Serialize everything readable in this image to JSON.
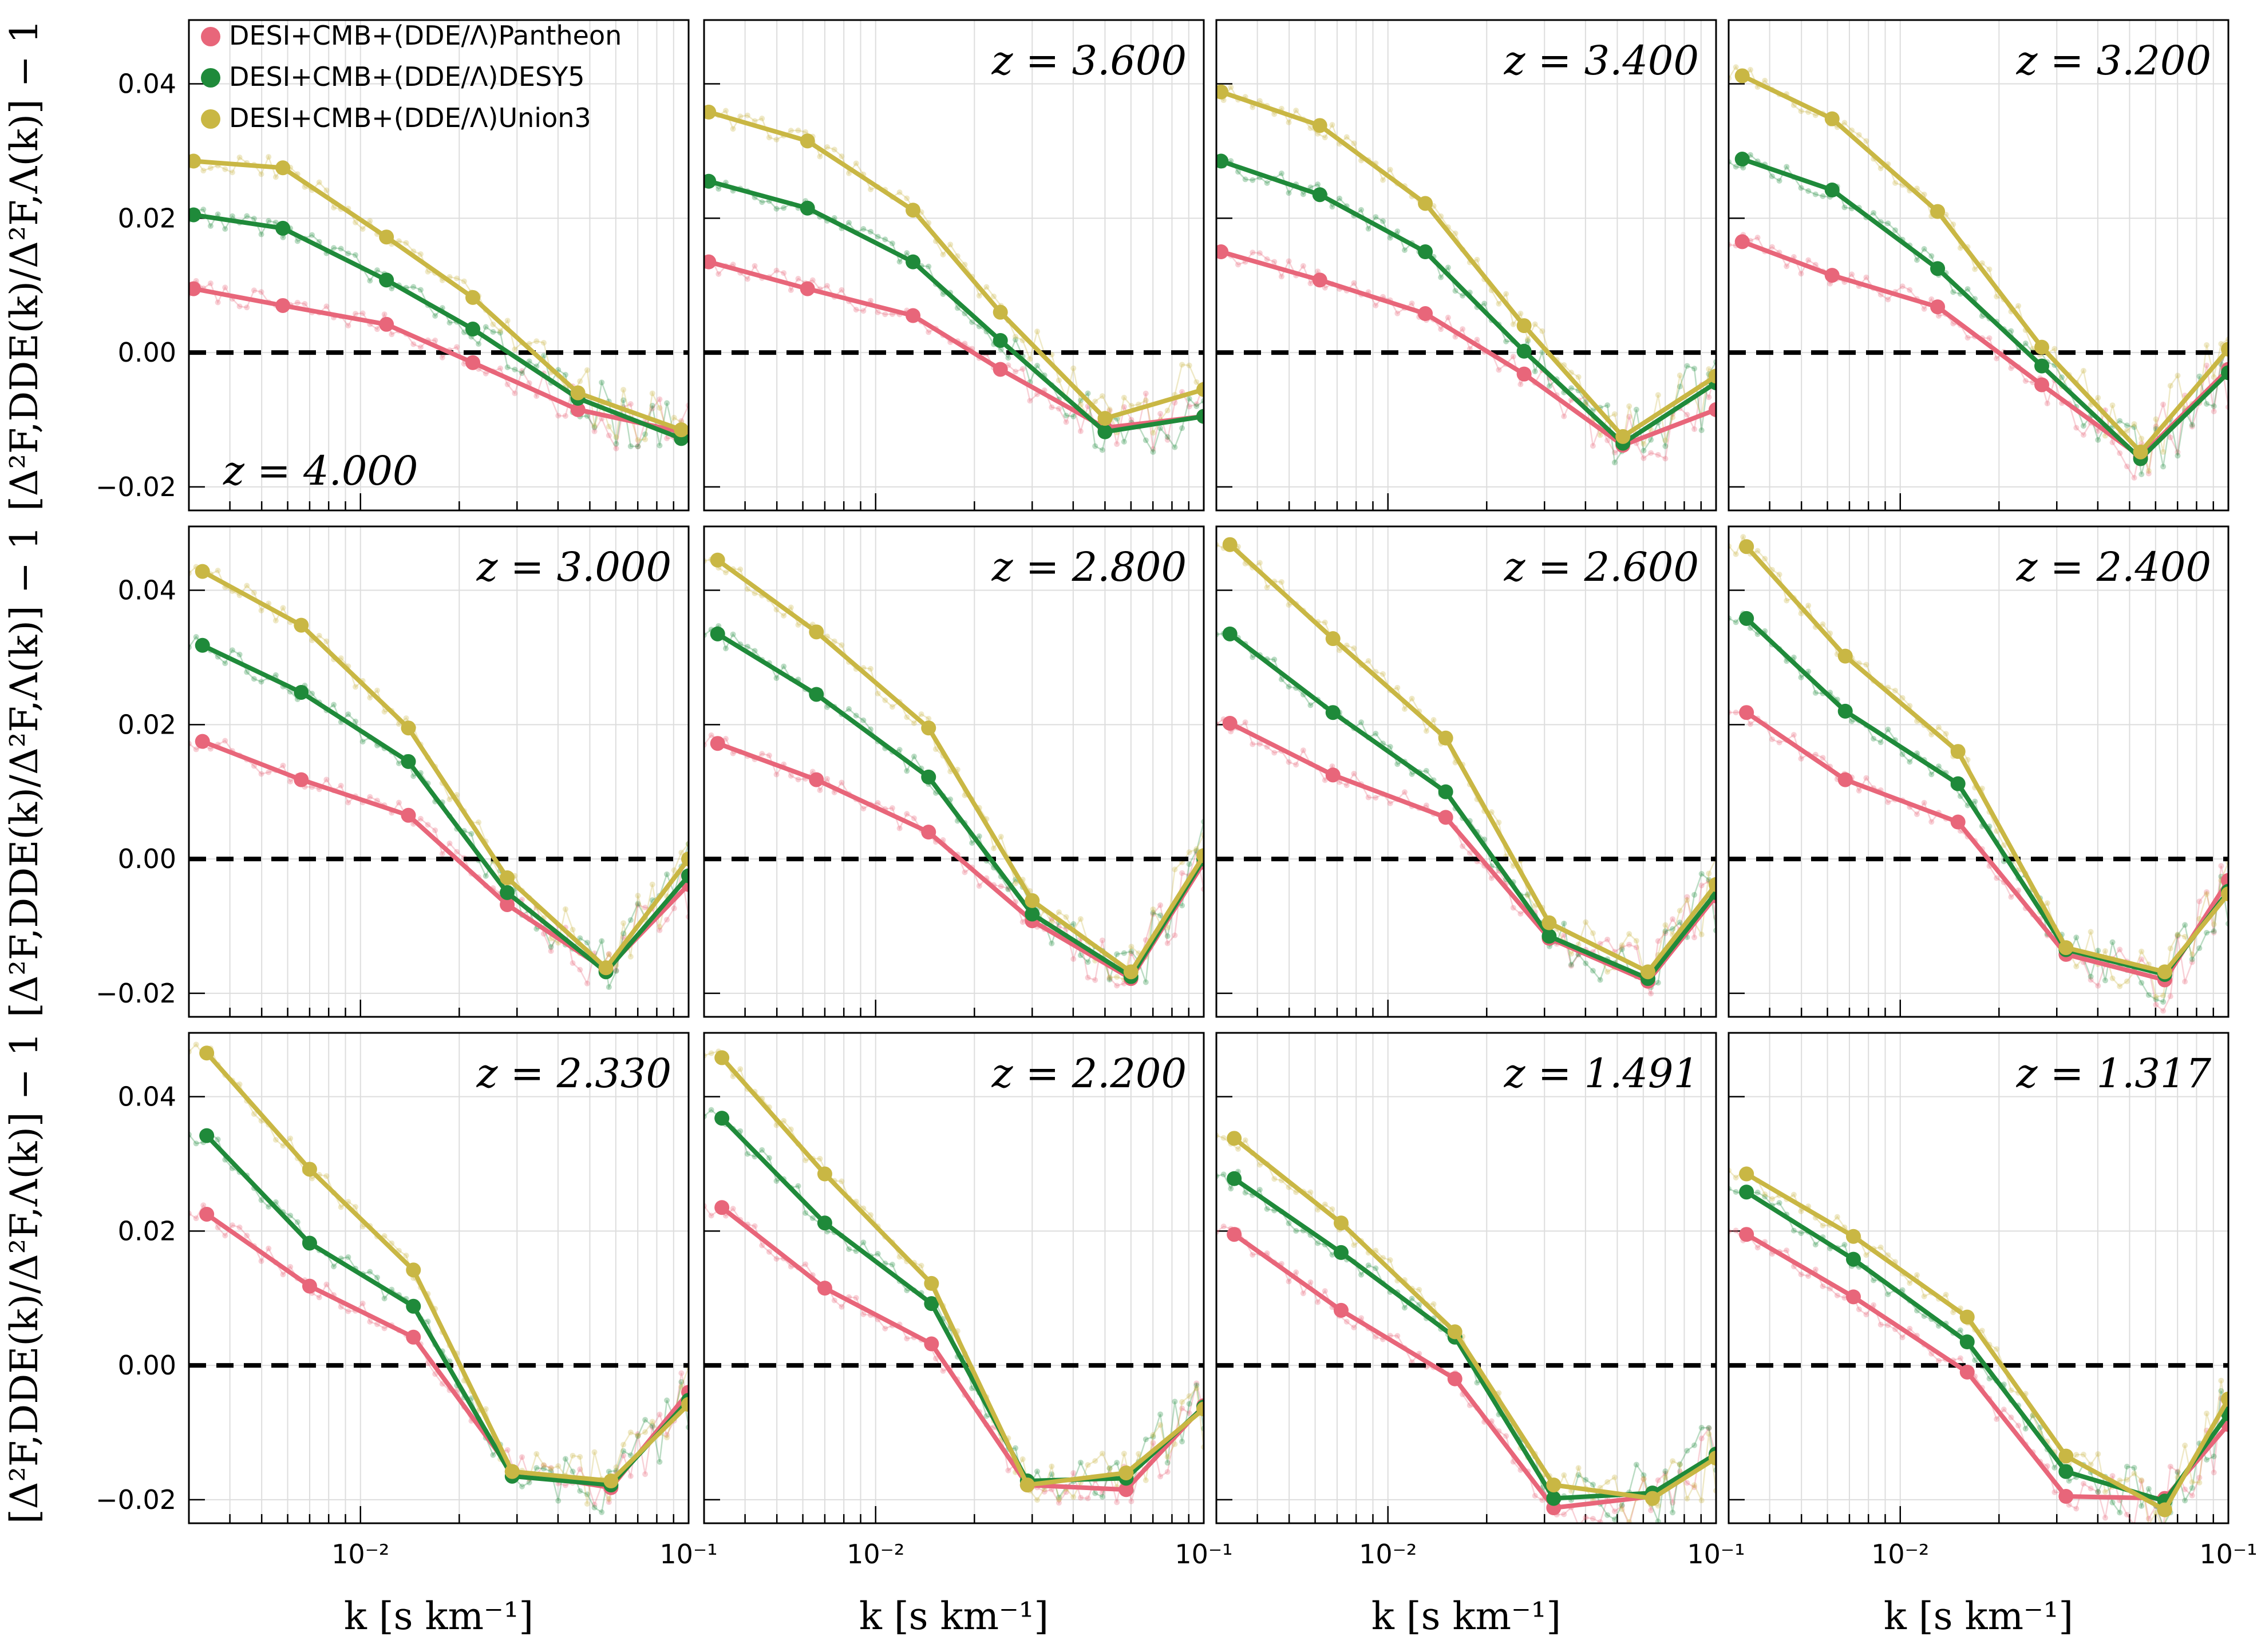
{
  "colors": {
    "pantheon": "#e8667a",
    "desy5": "#1f8a3a",
    "union3": "#c9b744",
    "reference": "#000000",
    "grid": "#dddddd"
  },
  "legend": [
    {
      "key": "pantheon",
      "label": "DESI+CMB+(DDE/Λ)Pantheon"
    },
    {
      "key": "desy5",
      "label": "DESI+CMB+(DDE/Λ)DESY5"
    },
    {
      "key": "union3",
      "label": "DESI+CMB+(DDE/Λ)Union3"
    }
  ],
  "axes": {
    "xlabel": "k [s km⁻¹]",
    "ylabel": "[Δ²F,DDE(k)/Δ²F,Λ(k)] − 1",
    "x_scale": "log",
    "xlim": [
      0.003,
      0.1
    ],
    "ylim": [
      -0.0235,
      0.0495
    ],
    "yticks": [
      -0.02,
      0.0,
      0.02,
      0.04
    ],
    "ytick_labels": [
      "−0.02",
      "0.00",
      "0.02",
      "0.04"
    ],
    "xtick_labels": [
      {
        "value": 0.01,
        "label": "10⁻²"
      },
      {
        "value": 0.1,
        "label": "10⁻¹"
      }
    ],
    "reference_line": 0.0
  },
  "chart_data": [
    {
      "type": "line",
      "z_label": "z = 4.000",
      "z_pos": "bottom-left",
      "series": [
        {
          "name": "DESI+CMB+(DDE/Λ)Pantheon",
          "x": [
            0.0031,
            0.0058,
            0.012,
            0.022,
            0.046,
            0.095
          ],
          "values": [
            0.0095,
            0.007,
            0.0042,
            -0.0015,
            -0.0085,
            -0.0118
          ]
        },
        {
          "name": "DESI+CMB+(DDE/Λ)DESY5",
          "x": [
            0.0031,
            0.0058,
            0.012,
            0.022,
            0.046,
            0.095
          ],
          "values": [
            0.0205,
            0.0185,
            0.0108,
            0.0035,
            -0.0068,
            -0.0128
          ]
        },
        {
          "name": "DESI+CMB+(DDE/Λ)Union3",
          "x": [
            0.0031,
            0.0058,
            0.012,
            0.022,
            0.046,
            0.095
          ],
          "values": [
            0.0285,
            0.0275,
            0.0172,
            0.0082,
            -0.006,
            -0.0115
          ]
        }
      ]
    },
    {
      "type": "line",
      "z_label": "z = 3.600",
      "z_pos": "top-right",
      "series": [
        {
          "name": "DESI+CMB+(DDE/Λ)Pantheon",
          "x": [
            0.0031,
            0.0062,
            0.013,
            0.024,
            0.05,
            0.1
          ],
          "values": [
            0.0135,
            0.0095,
            0.0055,
            -0.0025,
            -0.0112,
            -0.0095
          ]
        },
        {
          "name": "DESI+CMB+(DDE/Λ)DESY5",
          "x": [
            0.0031,
            0.0062,
            0.013,
            0.024,
            0.05,
            0.1
          ],
          "values": [
            0.0255,
            0.0215,
            0.0135,
            0.0018,
            -0.0118,
            -0.0095
          ]
        },
        {
          "name": "DESI+CMB+(DDE/Λ)Union3",
          "x": [
            0.0031,
            0.0062,
            0.013,
            0.024,
            0.05,
            0.1
          ],
          "values": [
            0.0358,
            0.0315,
            0.0212,
            0.006,
            -0.0098,
            -0.0055
          ]
        }
      ]
    },
    {
      "type": "line",
      "z_label": "z = 3.400",
      "z_pos": "top-right",
      "series": [
        {
          "name": "DESI+CMB+(DDE/Λ)Pantheon",
          "x": [
            0.0031,
            0.0062,
            0.013,
            0.026,
            0.052,
            0.1
          ],
          "values": [
            0.015,
            0.0108,
            0.0058,
            -0.0032,
            -0.0138,
            -0.0085
          ]
        },
        {
          "name": "DESI+CMB+(DDE/Λ)DESY5",
          "x": [
            0.0031,
            0.0062,
            0.013,
            0.026,
            0.052,
            0.1
          ],
          "values": [
            0.0285,
            0.0235,
            0.015,
            0.0002,
            -0.0135,
            -0.0045
          ]
        },
        {
          "name": "DESI+CMB+(DDE/Λ)Union3",
          "x": [
            0.0031,
            0.0062,
            0.013,
            0.026,
            0.052,
            0.1
          ],
          "values": [
            0.0388,
            0.0338,
            0.0222,
            0.004,
            -0.0125,
            -0.0035
          ]
        }
      ]
    },
    {
      "type": "line",
      "z_label": "z = 3.200",
      "z_pos": "top-right",
      "series": [
        {
          "name": "DESI+CMB+(DDE/Λ)Pantheon",
          "x": [
            0.0033,
            0.0062,
            0.013,
            0.027,
            0.054,
            0.1
          ],
          "values": [
            0.0165,
            0.0115,
            0.0068,
            -0.0048,
            -0.0155,
            -0.0025
          ]
        },
        {
          "name": "DESI+CMB+(DDE/Λ)DESY5",
          "x": [
            0.0033,
            0.0062,
            0.013,
            0.027,
            0.054,
            0.1
          ],
          "values": [
            0.0288,
            0.0242,
            0.0125,
            -0.002,
            -0.0158,
            -0.003
          ]
        },
        {
          "name": "DESI+CMB+(DDE/Λ)Union3",
          "x": [
            0.0033,
            0.0062,
            0.013,
            0.027,
            0.054,
            0.1
          ],
          "values": [
            0.0412,
            0.0348,
            0.021,
            0.0008,
            -0.0148,
            0.0005
          ]
        }
      ]
    },
    {
      "type": "line",
      "z_label": "z = 3.000",
      "z_pos": "top-right",
      "series": [
        {
          "name": "DESI+CMB+(DDE/Λ)Pantheon",
          "x": [
            0.0033,
            0.0066,
            0.014,
            0.028,
            0.056,
            0.1
          ],
          "values": [
            0.0175,
            0.0118,
            0.0065,
            -0.0068,
            -0.0165,
            -0.0038
          ]
        },
        {
          "name": "DESI+CMB+(DDE/Λ)DESY5",
          "x": [
            0.0033,
            0.0066,
            0.014,
            0.028,
            0.056,
            0.1
          ],
          "values": [
            0.0318,
            0.0248,
            0.0145,
            -0.005,
            -0.0168,
            -0.0025
          ]
        },
        {
          "name": "DESI+CMB+(DDE/Λ)Union3",
          "x": [
            0.0033,
            0.0066,
            0.014,
            0.028,
            0.056,
            0.1
          ],
          "values": [
            0.0428,
            0.0348,
            0.0195,
            -0.0028,
            -0.0162,
            0.0
          ]
        }
      ]
    },
    {
      "type": "line",
      "z_label": "z = 2.800",
      "z_pos": "top-right",
      "series": [
        {
          "name": "DESI+CMB+(DDE/Λ)Pantheon",
          "x": [
            0.0033,
            0.0066,
            0.0145,
            0.03,
            0.06,
            0.1
          ],
          "values": [
            0.0172,
            0.0118,
            0.004,
            -0.0092,
            -0.0178,
            -0.0005
          ]
        },
        {
          "name": "DESI+CMB+(DDE/Λ)DESY5",
          "x": [
            0.0033,
            0.0066,
            0.0145,
            0.03,
            0.06,
            0.1
          ],
          "values": [
            0.0335,
            0.0245,
            0.0122,
            -0.0082,
            -0.0175,
            0.0
          ]
        },
        {
          "name": "DESI+CMB+(DDE/Λ)Union3",
          "x": [
            0.0033,
            0.0066,
            0.0145,
            0.03,
            0.06,
            0.1
          ],
          "values": [
            0.0445,
            0.0338,
            0.0195,
            -0.0062,
            -0.0168,
            0.0005
          ]
        }
      ]
    },
    {
      "type": "line",
      "z_label": "z = 2.600",
      "z_pos": "top-right",
      "series": [
        {
          "name": "DESI+CMB+(DDE/Λ)Pantheon",
          "x": [
            0.0033,
            0.0068,
            0.015,
            0.031,
            0.062,
            0.1
          ],
          "values": [
            0.0202,
            0.0125,
            0.0062,
            -0.0118,
            -0.0182,
            -0.0055
          ]
        },
        {
          "name": "DESI+CMB+(DDE/Λ)DESY5",
          "x": [
            0.0033,
            0.0068,
            0.015,
            0.031,
            0.062,
            0.1
          ],
          "values": [
            0.0335,
            0.0218,
            0.01,
            -0.0115,
            -0.0178,
            -0.005
          ]
        },
        {
          "name": "DESI+CMB+(DDE/Λ)Union3",
          "x": [
            0.0033,
            0.0068,
            0.015,
            0.031,
            0.062,
            0.1
          ],
          "values": [
            0.0468,
            0.0328,
            0.018,
            -0.0095,
            -0.0168,
            -0.0038
          ]
        }
      ]
    },
    {
      "type": "line",
      "z_label": "z = 2.400",
      "z_pos": "top-right",
      "series": [
        {
          "name": "DESI+CMB+(DDE/Λ)Pantheon",
          "x": [
            0.0034,
            0.0068,
            0.015,
            0.032,
            0.064,
            0.1
          ],
          "values": [
            0.0218,
            0.0118,
            0.0055,
            -0.0142,
            -0.018,
            -0.0032
          ]
        },
        {
          "name": "DESI+CMB+(DDE/Λ)DESY5",
          "x": [
            0.0034,
            0.0068,
            0.015,
            0.032,
            0.064,
            0.1
          ],
          "values": [
            0.0358,
            0.022,
            0.0112,
            -0.0135,
            -0.0172,
            -0.0048
          ]
        },
        {
          "name": "DESI+CMB+(DDE/Λ)Union3",
          "x": [
            0.0034,
            0.0068,
            0.015,
            0.032,
            0.064,
            0.1
          ],
          "values": [
            0.0465,
            0.0302,
            0.016,
            -0.0132,
            -0.0168,
            -0.0052
          ]
        }
      ]
    },
    {
      "type": "line",
      "z_label": "z = 2.330",
      "z_pos": "top-right",
      "series": [
        {
          "name": "DESI+CMB+(DDE/Λ)Pantheon",
          "x": [
            0.0034,
            0.007,
            0.0145,
            0.029,
            0.058,
            0.1
          ],
          "values": [
            0.0225,
            0.0118,
            0.0042,
            -0.0158,
            -0.0182,
            -0.004
          ]
        },
        {
          "name": "DESI+CMB+(DDE/Λ)DESY5",
          "x": [
            0.0034,
            0.007,
            0.0145,
            0.029,
            0.058,
            0.1
          ],
          "values": [
            0.0342,
            0.0182,
            0.0088,
            -0.0165,
            -0.0178,
            -0.0052
          ]
        },
        {
          "name": "DESI+CMB+(DDE/Λ)Union3",
          "x": [
            0.0034,
            0.007,
            0.0145,
            0.029,
            0.058,
            0.1
          ],
          "values": [
            0.0465,
            0.0292,
            0.0142,
            -0.0158,
            -0.0172,
            -0.0058
          ]
        }
      ]
    },
    {
      "type": "line",
      "z_label": "z = 2.200",
      "z_pos": "top-right",
      "series": [
        {
          "name": "DESI+CMB+(DDE/Λ)Pantheon",
          "x": [
            0.0034,
            0.007,
            0.0148,
            0.029,
            0.058,
            0.1
          ],
          "values": [
            0.0235,
            0.0115,
            0.0032,
            -0.0178,
            -0.0185,
            -0.006
          ]
        },
        {
          "name": "DESI+CMB+(DDE/Λ)DESY5",
          "x": [
            0.0034,
            0.007,
            0.0148,
            0.029,
            0.058,
            0.1
          ],
          "values": [
            0.0368,
            0.0212,
            0.0092,
            -0.0172,
            -0.0168,
            -0.0062
          ]
        },
        {
          "name": "DESI+CMB+(DDE/Λ)Union3",
          "x": [
            0.0034,
            0.007,
            0.0148,
            0.029,
            0.058,
            0.1
          ],
          "values": [
            0.0458,
            0.0285,
            0.0122,
            -0.0178,
            -0.016,
            -0.0065
          ]
        }
      ]
    },
    {
      "type": "line",
      "z_label": "z = 1.491",
      "z_pos": "top-right",
      "series": [
        {
          "name": "DESI+CMB+(DDE/Λ)Pantheon",
          "x": [
            0.0034,
            0.0072,
            0.016,
            0.032,
            0.064,
            0.1
          ],
          "values": [
            0.0195,
            0.0082,
            -0.002,
            -0.0212,
            -0.0195,
            -0.0135
          ]
        },
        {
          "name": "DESI+CMB+(DDE/Λ)DESY5",
          "x": [
            0.0034,
            0.0072,
            0.016,
            0.032,
            0.064,
            0.1
          ],
          "values": [
            0.0278,
            0.0168,
            0.0042,
            -0.0198,
            -0.019,
            -0.0132
          ]
        },
        {
          "name": "DESI+CMB+(DDE/Λ)Union3",
          "x": [
            0.0034,
            0.0072,
            0.016,
            0.032,
            0.064,
            0.1
          ],
          "values": [
            0.0338,
            0.0212,
            0.005,
            -0.0178,
            -0.0198,
            -0.0138
          ]
        }
      ]
    },
    {
      "type": "line",
      "z_label": "z = 1.317",
      "z_pos": "top-right",
      "series": [
        {
          "name": "DESI+CMB+(DDE/Λ)Pantheon",
          "x": [
            0.0034,
            0.0072,
            0.016,
            0.032,
            0.064,
            0.1
          ],
          "values": [
            0.0195,
            0.0102,
            -0.001,
            -0.0195,
            -0.0198,
            -0.0088
          ]
        },
        {
          "name": "DESI+CMB+(DDE/Λ)DESY5",
          "x": [
            0.0034,
            0.0072,
            0.016,
            0.032,
            0.064,
            0.1
          ],
          "values": [
            0.0258,
            0.0158,
            0.0035,
            -0.0158,
            -0.0202,
            -0.0072
          ]
        },
        {
          "name": "DESI+CMB+(DDE/Λ)Union3",
          "x": [
            0.0034,
            0.0072,
            0.016,
            0.032,
            0.064,
            0.1
          ],
          "values": [
            0.0285,
            0.0192,
            0.0072,
            -0.0135,
            -0.0215,
            -0.005
          ]
        }
      ]
    }
  ]
}
